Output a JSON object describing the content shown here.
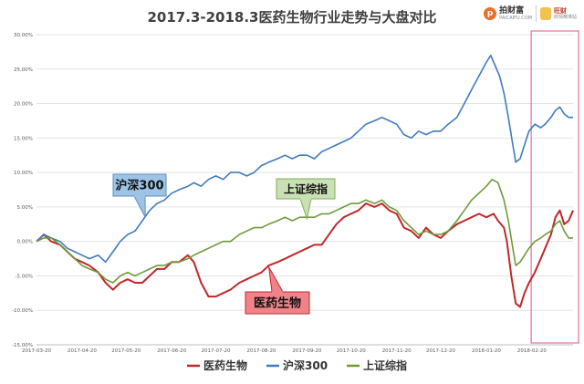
{
  "chart_data": {
    "type": "line",
    "title": "2017.3-2018.3医药生物行业走势与大盘对比",
    "ylim": [
      -0.15,
      0.3
    ],
    "y_ticks": [
      "30.00%",
      "25.00%",
      "20.00%",
      "15.00%",
      "10.00%",
      "5.00%",
      "0.00%",
      "-5.00%",
      "-10.00%",
      "-15.00%"
    ],
    "x_ticks": [
      "2017-03-20",
      "2017-04-20",
      "2017-05-20",
      "2017-06-20",
      "2017-07-20",
      "2017-08-20",
      "2017-09-20",
      "2017-10-20",
      "2017-11-20",
      "2017-12-20",
      "2018-01-20",
      "2018-02-20"
    ],
    "x_range": [
      "2017-03-20",
      "2018-03-20"
    ],
    "legend_position": "bottom",
    "highlight_window": [
      "2018-02-22",
      "2018-03-20"
    ],
    "series": [
      {
        "name": "医药生物",
        "color": "#c0282b",
        "points": [
          [
            "2017-03-20",
            0.0
          ],
          [
            "2017-03-25",
            0.01
          ],
          [
            "2017-03-30",
            0.0
          ],
          [
            "2017-04-05",
            -0.005
          ],
          [
            "2017-04-10",
            -0.015
          ],
          [
            "2017-04-15",
            -0.025
          ],
          [
            "2017-04-20",
            -0.03
          ],
          [
            "2017-04-25",
            -0.035
          ],
          [
            "2017-05-01",
            -0.045
          ],
          [
            "2017-05-06",
            -0.06
          ],
          [
            "2017-05-11",
            -0.07
          ],
          [
            "2017-05-16",
            -0.06
          ],
          [
            "2017-05-21",
            -0.055
          ],
          [
            "2017-05-26",
            -0.06
          ],
          [
            "2017-05-31",
            -0.06
          ],
          [
            "2017-06-05",
            -0.05
          ],
          [
            "2017-06-10",
            -0.04
          ],
          [
            "2017-06-15",
            -0.04
          ],
          [
            "2017-06-20",
            -0.03
          ],
          [
            "2017-06-25",
            -0.03
          ],
          [
            "2017-07-01",
            -0.02
          ],
          [
            "2017-07-05",
            -0.03
          ],
          [
            "2017-07-10",
            -0.06
          ],
          [
            "2017-07-15",
            -0.08
          ],
          [
            "2017-07-20",
            -0.08
          ],
          [
            "2017-07-25",
            -0.075
          ],
          [
            "2017-07-30",
            -0.07
          ],
          [
            "2017-08-05",
            -0.06
          ],
          [
            "2017-08-10",
            -0.055
          ],
          [
            "2017-08-15",
            -0.05
          ],
          [
            "2017-08-20",
            -0.045
          ],
          [
            "2017-08-25",
            -0.035
          ],
          [
            "2017-08-31",
            -0.03
          ],
          [
            "2017-09-05",
            -0.025
          ],
          [
            "2017-09-10",
            -0.02
          ],
          [
            "2017-09-15",
            -0.015
          ],
          [
            "2017-09-20",
            -0.01
          ],
          [
            "2017-09-25",
            -0.005
          ],
          [
            "2017-09-30",
            -0.005
          ],
          [
            "2017-10-05",
            0.01
          ],
          [
            "2017-10-10",
            0.025
          ],
          [
            "2017-10-15",
            0.035
          ],
          [
            "2017-10-20",
            0.04
          ],
          [
            "2017-10-25",
            0.045
          ],
          [
            "2017-10-30",
            0.055
          ],
          [
            "2017-11-05",
            0.05
          ],
          [
            "2017-11-10",
            0.055
          ],
          [
            "2017-11-15",
            0.045
          ],
          [
            "2017-11-20",
            0.04
          ],
          [
            "2017-11-25",
            0.02
          ],
          [
            "2017-11-30",
            0.015
          ],
          [
            "2017-12-05",
            0.005
          ],
          [
            "2017-12-10",
            0.02
          ],
          [
            "2017-12-15",
            0.01
          ],
          [
            "2017-12-20",
            0.005
          ],
          [
            "2017-12-25",
            0.015
          ],
          [
            "2017-12-31",
            0.025
          ],
          [
            "2018-01-05",
            0.03
          ],
          [
            "2018-01-10",
            0.035
          ],
          [
            "2018-01-15",
            0.04
          ],
          [
            "2018-01-20",
            0.035
          ],
          [
            "2018-01-25",
            0.04
          ],
          [
            "2018-01-28",
            0.03
          ],
          [
            "2018-02-01",
            0.02
          ],
          [
            "2018-02-03",
            0.0
          ],
          [
            "2018-02-06",
            -0.05
          ],
          [
            "2018-02-09",
            -0.09
          ],
          [
            "2018-02-12",
            -0.095
          ],
          [
            "2018-02-15",
            -0.075
          ],
          [
            "2018-02-18",
            -0.06
          ],
          [
            "2018-02-22",
            -0.045
          ],
          [
            "2018-02-26",
            -0.025
          ],
          [
            "2018-03-01",
            -0.01
          ],
          [
            "2018-03-05",
            0.01
          ],
          [
            "2018-03-08",
            0.035
          ],
          [
            "2018-03-11",
            0.045
          ],
          [
            "2018-03-14",
            0.025
          ],
          [
            "2018-03-17",
            0.03
          ],
          [
            "2018-03-20",
            0.045
          ]
        ]
      },
      {
        "name": "沪深300",
        "color": "#3f7bbf",
        "points": [
          [
            "2017-03-20",
            0.0
          ],
          [
            "2017-03-25",
            0.01
          ],
          [
            "2017-03-30",
            0.005
          ],
          [
            "2017-04-05",
            0.0
          ],
          [
            "2017-04-10",
            -0.01
          ],
          [
            "2017-04-15",
            -0.015
          ],
          [
            "2017-04-20",
            -0.02
          ],
          [
            "2017-04-25",
            -0.025
          ],
          [
            "2017-05-01",
            -0.02
          ],
          [
            "2017-05-06",
            -0.03
          ],
          [
            "2017-05-11",
            -0.015
          ],
          [
            "2017-05-16",
            0.0
          ],
          [
            "2017-05-21",
            0.01
          ],
          [
            "2017-05-26",
            0.015
          ],
          [
            "2017-05-31",
            0.03
          ],
          [
            "2017-06-05",
            0.045
          ],
          [
            "2017-06-10",
            0.055
          ],
          [
            "2017-06-15",
            0.06
          ],
          [
            "2017-06-20",
            0.07
          ],
          [
            "2017-06-25",
            0.075
          ],
          [
            "2017-07-01",
            0.08
          ],
          [
            "2017-07-05",
            0.085
          ],
          [
            "2017-07-10",
            0.08
          ],
          [
            "2017-07-15",
            0.09
          ],
          [
            "2017-07-20",
            0.095
          ],
          [
            "2017-07-25",
            0.09
          ],
          [
            "2017-07-30",
            0.1
          ],
          [
            "2017-08-05",
            0.1
          ],
          [
            "2017-08-10",
            0.095
          ],
          [
            "2017-08-15",
            0.1
          ],
          [
            "2017-08-20",
            0.11
          ],
          [
            "2017-08-25",
            0.115
          ],
          [
            "2017-08-31",
            0.12
          ],
          [
            "2017-09-05",
            0.125
          ],
          [
            "2017-09-10",
            0.12
          ],
          [
            "2017-09-15",
            0.125
          ],
          [
            "2017-09-20",
            0.125
          ],
          [
            "2017-09-25",
            0.12
          ],
          [
            "2017-09-30",
            0.13
          ],
          [
            "2017-10-05",
            0.135
          ],
          [
            "2017-10-10",
            0.14
          ],
          [
            "2017-10-15",
            0.145
          ],
          [
            "2017-10-20",
            0.15
          ],
          [
            "2017-10-25",
            0.16
          ],
          [
            "2017-10-30",
            0.17
          ],
          [
            "2017-11-05",
            0.175
          ],
          [
            "2017-11-10",
            0.18
          ],
          [
            "2017-11-15",
            0.175
          ],
          [
            "2017-11-20",
            0.17
          ],
          [
            "2017-11-25",
            0.155
          ],
          [
            "2017-11-30",
            0.15
          ],
          [
            "2017-12-05",
            0.16
          ],
          [
            "2017-12-10",
            0.155
          ],
          [
            "2017-12-15",
            0.16
          ],
          [
            "2017-12-20",
            0.16
          ],
          [
            "2017-12-25",
            0.17
          ],
          [
            "2017-12-31",
            0.18
          ],
          [
            "2018-01-05",
            0.2
          ],
          [
            "2018-01-10",
            0.22
          ],
          [
            "2018-01-15",
            0.24
          ],
          [
            "2018-01-20",
            0.26
          ],
          [
            "2018-01-23",
            0.27
          ],
          [
            "2018-01-26",
            0.255
          ],
          [
            "2018-01-29",
            0.24
          ],
          [
            "2018-02-01",
            0.215
          ],
          [
            "2018-02-04",
            0.18
          ],
          [
            "2018-02-07",
            0.14
          ],
          [
            "2018-02-09",
            0.115
          ],
          [
            "2018-02-12",
            0.12
          ],
          [
            "2018-02-15",
            0.14
          ],
          [
            "2018-02-18",
            0.16
          ],
          [
            "2018-02-22",
            0.17
          ],
          [
            "2018-02-26",
            0.165
          ],
          [
            "2018-03-01",
            0.17
          ],
          [
            "2018-03-05",
            0.18
          ],
          [
            "2018-03-08",
            0.19
          ],
          [
            "2018-03-11",
            0.195
          ],
          [
            "2018-03-14",
            0.185
          ],
          [
            "2018-03-17",
            0.18
          ],
          [
            "2018-03-20",
            0.18
          ]
        ]
      },
      {
        "name": "上证综指",
        "color": "#6e9b3c",
        "points": [
          [
            "2017-03-20",
            0.0
          ],
          [
            "2017-03-25",
            0.005
          ],
          [
            "2017-03-30",
            0.005
          ],
          [
            "2017-04-05",
            -0.005
          ],
          [
            "2017-04-10",
            -0.015
          ],
          [
            "2017-04-15",
            -0.025
          ],
          [
            "2017-04-20",
            -0.035
          ],
          [
            "2017-04-25",
            -0.04
          ],
          [
            "2017-05-01",
            -0.045
          ],
          [
            "2017-05-06",
            -0.055
          ],
          [
            "2017-05-11",
            -0.06
          ],
          [
            "2017-05-16",
            -0.05
          ],
          [
            "2017-05-21",
            -0.045
          ],
          [
            "2017-05-26",
            -0.05
          ],
          [
            "2017-05-31",
            -0.045
          ],
          [
            "2017-06-05",
            -0.04
          ],
          [
            "2017-06-10",
            -0.035
          ],
          [
            "2017-06-15",
            -0.035
          ],
          [
            "2017-06-20",
            -0.03
          ],
          [
            "2017-06-25",
            -0.03
          ],
          [
            "2017-07-01",
            -0.025
          ],
          [
            "2017-07-05",
            -0.02
          ],
          [
            "2017-07-10",
            -0.015
          ],
          [
            "2017-07-15",
            -0.01
          ],
          [
            "2017-07-20",
            -0.005
          ],
          [
            "2017-07-25",
            0.0
          ],
          [
            "2017-07-30",
            0.0
          ],
          [
            "2017-08-05",
            0.01
          ],
          [
            "2017-08-10",
            0.015
          ],
          [
            "2017-08-15",
            0.02
          ],
          [
            "2017-08-20",
            0.02
          ],
          [
            "2017-08-25",
            0.025
          ],
          [
            "2017-08-31",
            0.03
          ],
          [
            "2017-09-05",
            0.035
          ],
          [
            "2017-09-10",
            0.03
          ],
          [
            "2017-09-15",
            0.035
          ],
          [
            "2017-09-20",
            0.035
          ],
          [
            "2017-09-25",
            0.035
          ],
          [
            "2017-09-30",
            0.04
          ],
          [
            "2017-10-05",
            0.04
          ],
          [
            "2017-10-10",
            0.045
          ],
          [
            "2017-10-15",
            0.05
          ],
          [
            "2017-10-20",
            0.055
          ],
          [
            "2017-10-25",
            0.055
          ],
          [
            "2017-10-30",
            0.06
          ],
          [
            "2017-11-05",
            0.055
          ],
          [
            "2017-11-10",
            0.06
          ],
          [
            "2017-11-15",
            0.05
          ],
          [
            "2017-11-20",
            0.045
          ],
          [
            "2017-11-25",
            0.03
          ],
          [
            "2017-11-30",
            0.02
          ],
          [
            "2017-12-05",
            0.01
          ],
          [
            "2017-12-10",
            0.015
          ],
          [
            "2017-12-15",
            0.01
          ],
          [
            "2017-12-20",
            0.01
          ],
          [
            "2017-12-25",
            0.015
          ],
          [
            "2017-12-31",
            0.03
          ],
          [
            "2018-01-05",
            0.045
          ],
          [
            "2018-01-10",
            0.06
          ],
          [
            "2018-01-15",
            0.07
          ],
          [
            "2018-01-20",
            0.08
          ],
          [
            "2018-01-24",
            0.09
          ],
          [
            "2018-01-28",
            0.085
          ],
          [
            "2018-02-01",
            0.06
          ],
          [
            "2018-02-04",
            0.03
          ],
          [
            "2018-02-07",
            -0.01
          ],
          [
            "2018-02-09",
            -0.035
          ],
          [
            "2018-02-12",
            -0.03
          ],
          [
            "2018-02-15",
            -0.02
          ],
          [
            "2018-02-18",
            -0.01
          ],
          [
            "2018-02-22",
            0.0
          ],
          [
            "2018-02-26",
            0.005
          ],
          [
            "2018-03-01",
            0.01
          ],
          [
            "2018-03-05",
            0.015
          ],
          [
            "2018-03-08",
            0.025
          ],
          [
            "2018-03-11",
            0.03
          ],
          [
            "2018-03-14",
            0.015
          ],
          [
            "2018-03-17",
            0.005
          ],
          [
            "2018-03-20",
            0.005
          ]
        ]
      }
    ],
    "callouts": [
      {
        "text": "沪深300",
        "series": 1,
        "fill": "#9dc3e6",
        "stroke": "#5a8fc4",
        "point_date": "2017-06-02",
        "point_value": 0.035
      },
      {
        "text": "上证综指",
        "series": 2,
        "fill": "#c9e0b4",
        "stroke": "#7fae54",
        "point_date": "2017-09-20",
        "point_value": 0.033
      },
      {
        "text": "医药生物",
        "series": 0,
        "fill": "#f0838a",
        "stroke": "#c0282b",
        "point_date": "2017-08-25",
        "point_value": -0.037
      }
    ]
  },
  "logos": {
    "brand_a": {
      "mark": "p",
      "name": "拍财富",
      "sub": "PAICAIFU.COM"
    },
    "brand_b": {
      "name": "旺财",
      "sub": "财情精准站"
    }
  }
}
